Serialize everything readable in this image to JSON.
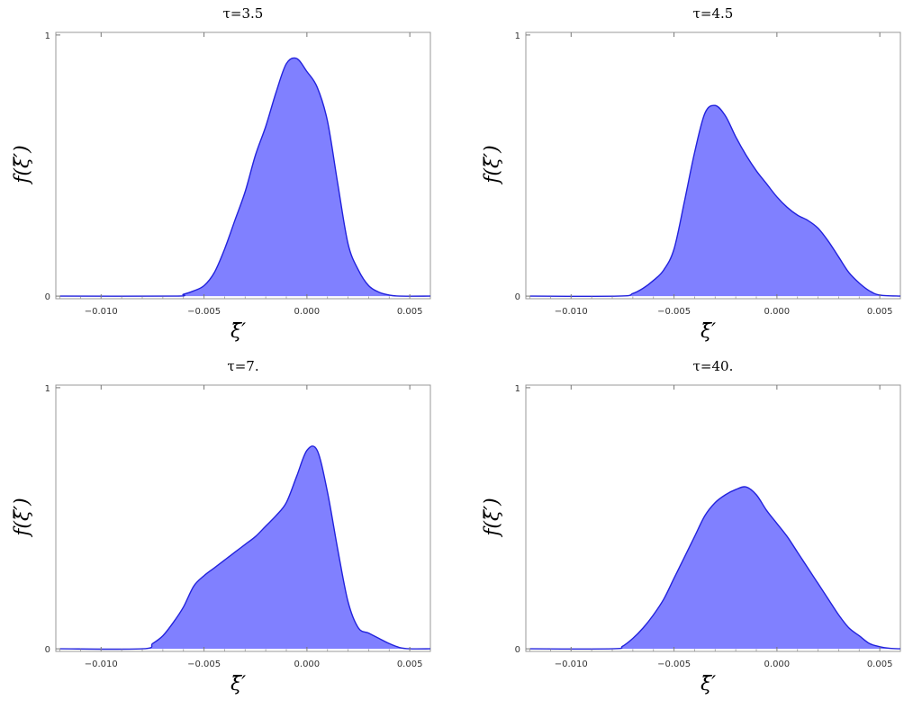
{
  "chart_data": [
    {
      "type": "area",
      "title": "τ=3.5",
      "xlabel": "ξ̄′",
      "ylabel": "f(ξ̄′)",
      "xlim": [
        -0.0122,
        0.006
      ],
      "ylim": [
        -0.01,
        1.01
      ],
      "xticks": [
        "−0.010",
        "−0.005",
        "0.000",
        "0.005"
      ],
      "xtick_values": [
        -0.01,
        -0.005,
        0.0,
        0.005
      ],
      "yticks": [
        "0",
        "1"
      ],
      "ytick_values": [
        0,
        1
      ],
      "fill_color": "#8080ff",
      "line_color": "#2222dd",
      "x": [
        -0.012,
        -0.0065,
        -0.006,
        -0.0055,
        -0.005,
        -0.0045,
        -0.004,
        -0.0035,
        -0.003,
        -0.0025,
        -0.002,
        -0.0015,
        -0.001,
        -0.0005,
        0.0,
        0.0005,
        0.001,
        0.0015,
        0.002,
        0.0025,
        0.003,
        0.0035,
        0.004,
        0.0045,
        0.006
      ],
      "y": [
        0.0,
        0.0,
        0.007,
        0.02,
        0.04,
        0.09,
        0.18,
        0.29,
        0.4,
        0.54,
        0.65,
        0.78,
        0.89,
        0.91,
        0.86,
        0.8,
        0.67,
        0.43,
        0.2,
        0.1,
        0.04,
        0.015,
        0.004,
        0.0,
        0.0
      ]
    },
    {
      "type": "area",
      "title": "τ=4.5",
      "xlabel": "ξ̄′",
      "ylabel": "f(ξ̄′)",
      "xlim": [
        -0.0122,
        0.006
      ],
      "ylim": [
        -0.01,
        1.01
      ],
      "xticks": [
        "−0.010",
        "−0.005",
        "0.000",
        "0.005"
      ],
      "xtick_values": [
        -0.01,
        -0.005,
        0.0,
        0.005
      ],
      "yticks": [
        "0",
        "1"
      ],
      "ytick_values": [
        0,
        1
      ],
      "fill_color": "#8080ff",
      "line_color": "#2222dd",
      "x": [
        -0.012,
        -0.0077,
        -0.007,
        -0.0065,
        -0.006,
        -0.0055,
        -0.005,
        -0.0045,
        -0.004,
        -0.0035,
        -0.003,
        -0.0025,
        -0.002,
        -0.0015,
        -0.001,
        -0.0005,
        0.0,
        0.0005,
        0.001,
        0.0015,
        0.002,
        0.0025,
        0.003,
        0.0035,
        0.004,
        0.0045,
        0.005,
        0.006
      ],
      "y": [
        0.0,
        0.0,
        0.01,
        0.03,
        0.06,
        0.1,
        0.18,
        0.36,
        0.55,
        0.7,
        0.73,
        0.69,
        0.61,
        0.54,
        0.48,
        0.43,
        0.38,
        0.34,
        0.31,
        0.29,
        0.26,
        0.21,
        0.15,
        0.09,
        0.05,
        0.02,
        0.004,
        0.0
      ]
    },
    {
      "type": "area",
      "title": "τ=7.",
      "xlabel": "ξ̄′",
      "ylabel": "f(ξ̄′)",
      "xlim": [
        -0.0122,
        0.006
      ],
      "ylim": [
        -0.01,
        1.01
      ],
      "xticks": [
        "−0.010",
        "−0.005",
        "0.000",
        "0.005"
      ],
      "xtick_values": [
        -0.01,
        -0.005,
        0.0,
        0.005
      ],
      "yticks": [
        "0",
        "1"
      ],
      "ytick_values": [
        0,
        1
      ],
      "fill_color": "#8080ff",
      "line_color": "#2222dd",
      "x": [
        -0.012,
        -0.008,
        -0.0075,
        -0.007,
        -0.0065,
        -0.006,
        -0.0055,
        -0.005,
        -0.0045,
        -0.004,
        -0.0035,
        -0.003,
        -0.0025,
        -0.002,
        -0.0015,
        -0.001,
        -0.0005,
        0.0,
        0.0005,
        0.001,
        0.0015,
        0.002,
        0.0025,
        0.003,
        0.0035,
        0.004,
        0.0045,
        0.005,
        0.006
      ],
      "y": [
        0.0,
        0.0,
        0.02,
        0.05,
        0.1,
        0.16,
        0.24,
        0.28,
        0.31,
        0.34,
        0.37,
        0.4,
        0.43,
        0.47,
        0.51,
        0.56,
        0.66,
        0.76,
        0.76,
        0.6,
        0.38,
        0.18,
        0.08,
        0.06,
        0.04,
        0.02,
        0.005,
        0.0,
        0.0
      ]
    },
    {
      "type": "area",
      "title": "τ=40.",
      "xlabel": "ξ̄′",
      "ylabel": "f(ξ̄′)",
      "xlim": [
        -0.0122,
        0.006
      ],
      "ylim": [
        -0.01,
        1.01
      ],
      "xticks": [
        "−0.010",
        "−0.005",
        "0.000",
        "0.005"
      ],
      "xtick_values": [
        -0.01,
        -0.005,
        0.0,
        0.005
      ],
      "yticks": [
        "0",
        "1"
      ],
      "ytick_values": [
        0,
        1
      ],
      "fill_color": "#8080ff",
      "line_color": "#2222dd",
      "x": [
        -0.012,
        -0.008,
        -0.0075,
        -0.007,
        -0.0065,
        -0.006,
        -0.0055,
        -0.005,
        -0.0045,
        -0.004,
        -0.0035,
        -0.003,
        -0.0025,
        -0.002,
        -0.0015,
        -0.001,
        -0.0005,
        0.0,
        0.0005,
        0.001,
        0.0015,
        0.002,
        0.0025,
        0.003,
        0.0035,
        0.004,
        0.0045,
        0.005,
        0.0055,
        0.006
      ],
      "y": [
        0.0,
        0.0,
        0.01,
        0.04,
        0.08,
        0.13,
        0.19,
        0.27,
        0.35,
        0.43,
        0.51,
        0.56,
        0.59,
        0.61,
        0.62,
        0.59,
        0.53,
        0.48,
        0.43,
        0.37,
        0.31,
        0.25,
        0.19,
        0.13,
        0.08,
        0.05,
        0.02,
        0.008,
        0.002,
        0.0
      ]
    }
  ]
}
